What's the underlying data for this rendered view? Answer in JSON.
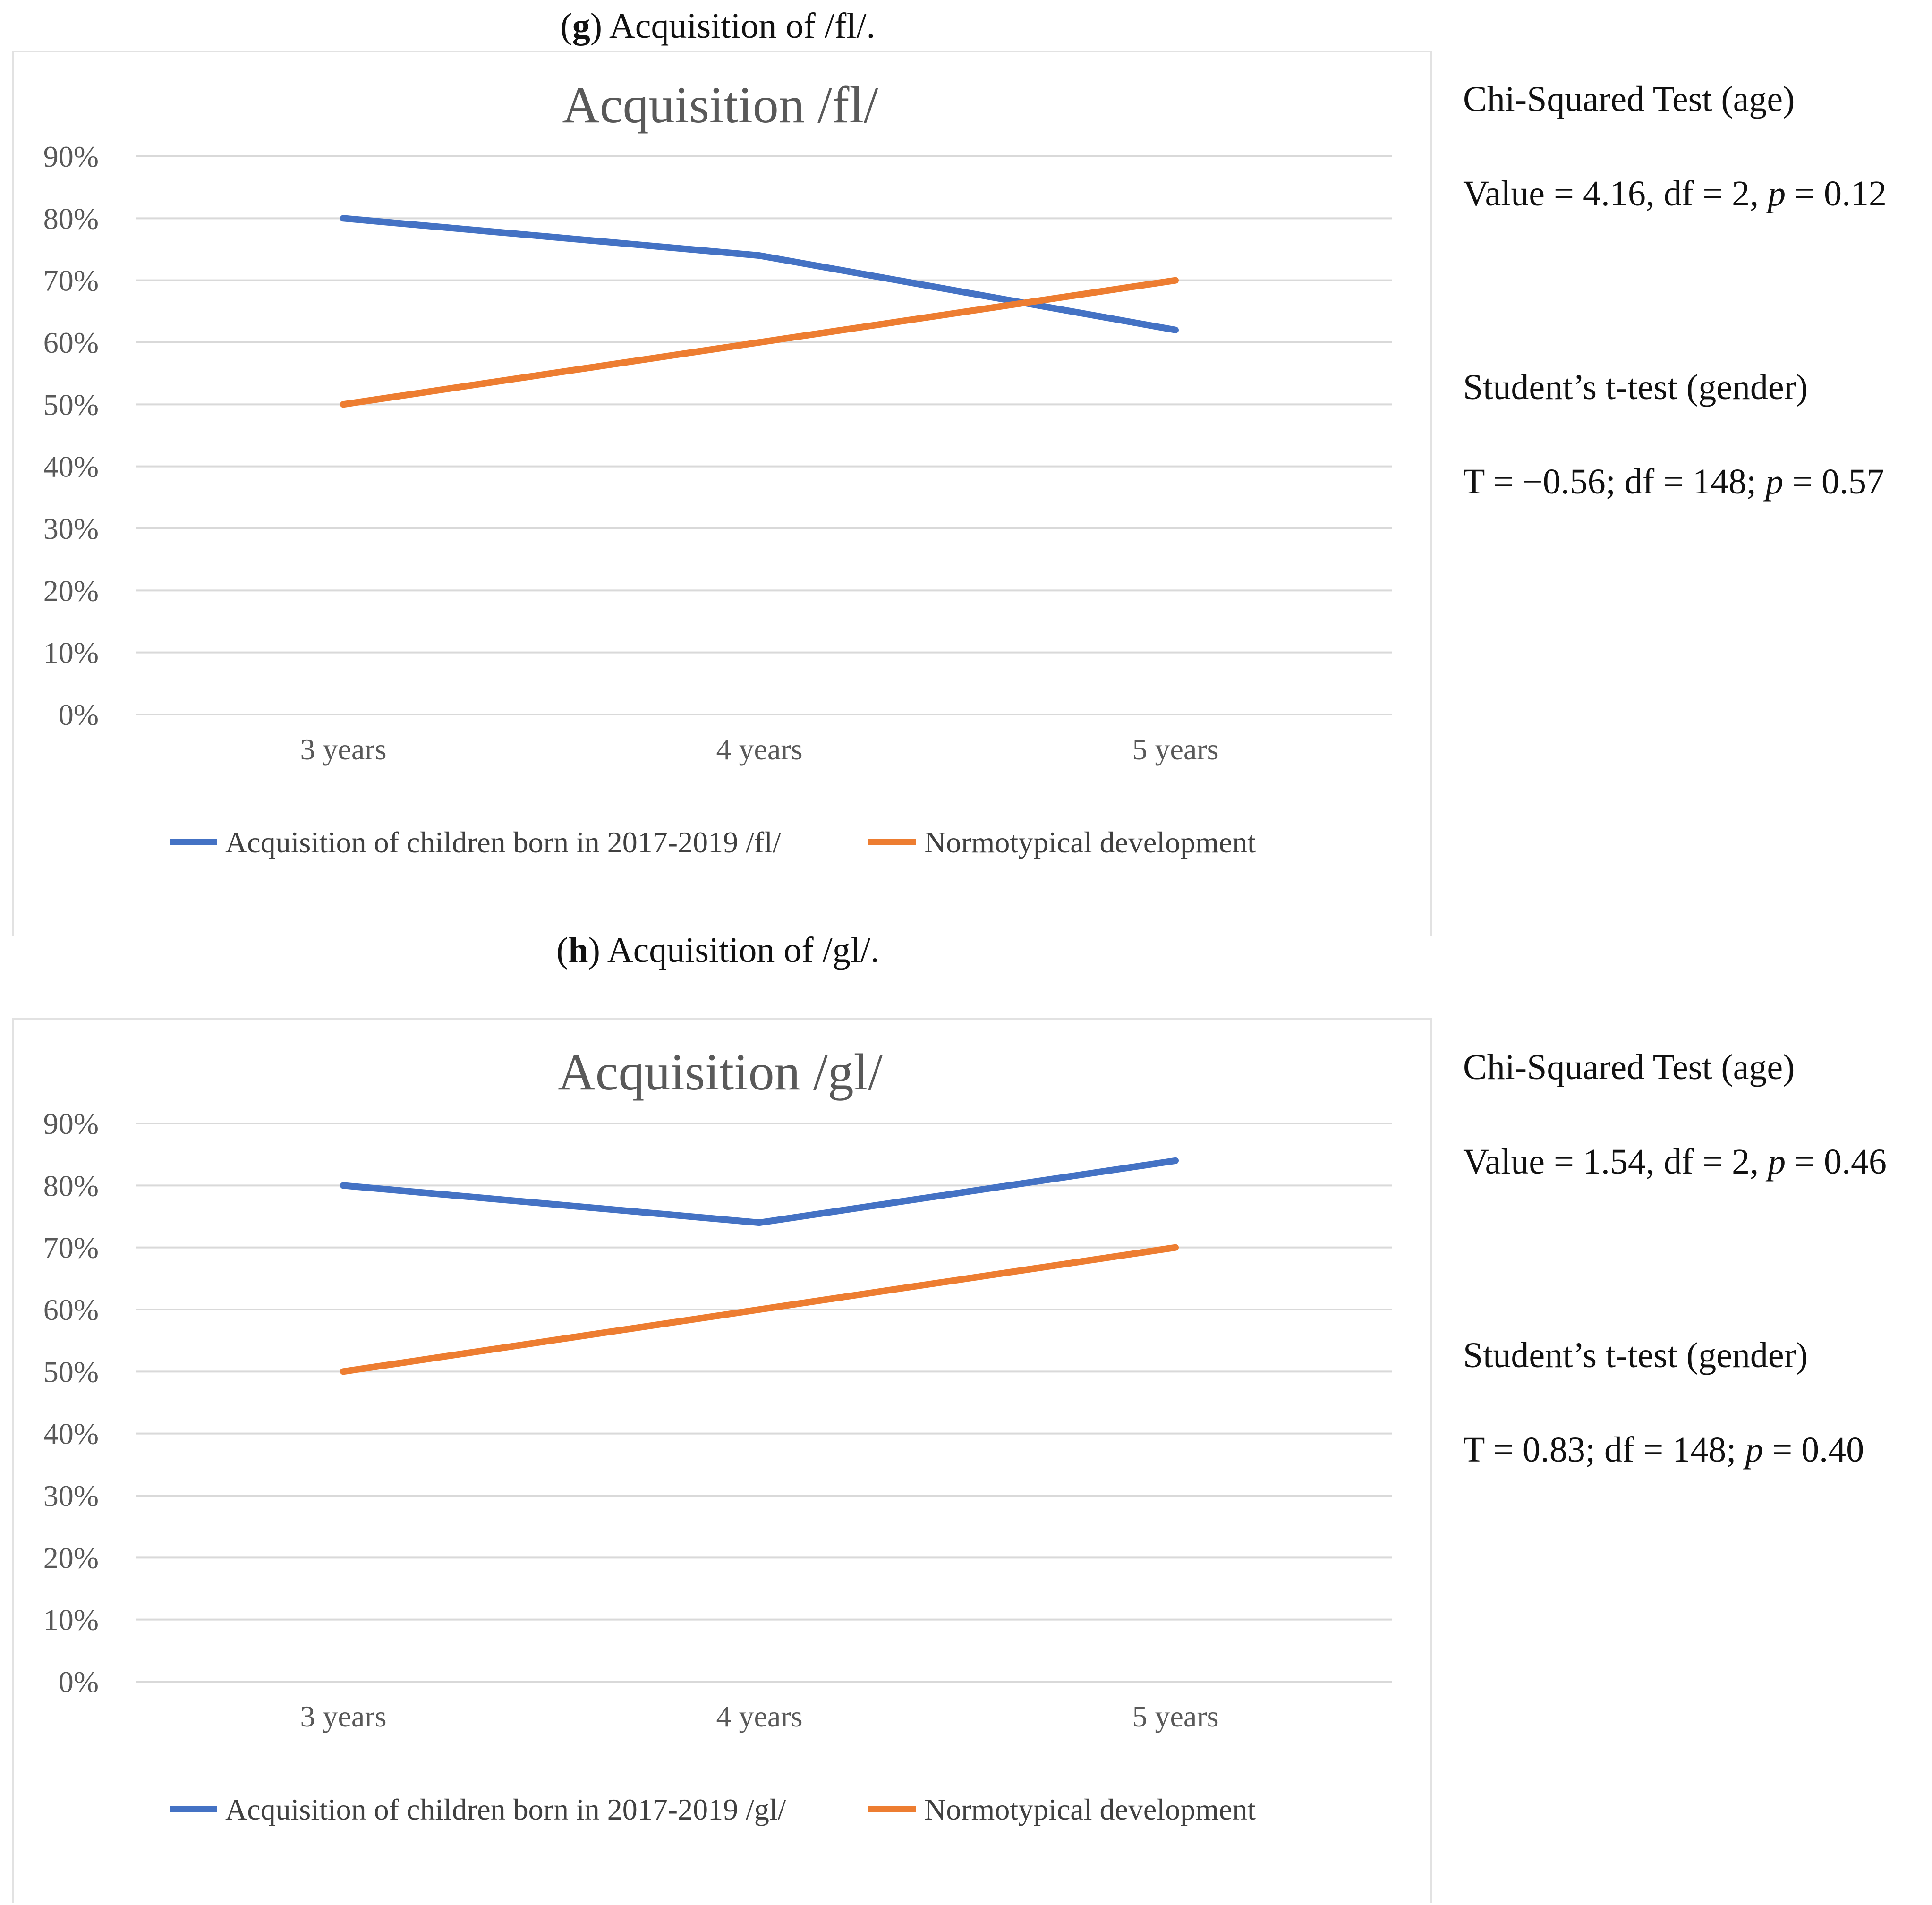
{
  "figures": [
    {
      "caption_letter": "g",
      "caption_text": ") Acquisition of /fl/.",
      "stats": {
        "chi_title": "Chi-Squared Test (age)",
        "chi_value_prefix": "Value = 4.16, df = 2, ",
        "chi_p_symbol": "p",
        "chi_p_value": " = 0.12",
        "t_title": "Student’s t-test (gender)",
        "t_value_prefix": "T = −0.56; df = 148; ",
        "t_p_symbol": "p",
        "t_p_value": " = 0.57"
      }
    },
    {
      "caption_letter": "h",
      "caption_text": ") Acquisition of /gl/.",
      "stats": {
        "chi_title": "Chi-Squared Test (age)",
        "chi_value_prefix": "Value = 1.54, df = 2, ",
        "chi_p_symbol": "p",
        "chi_p_value": " = 0.46",
        "t_title": "Student’s t-test (gender)",
        "t_value_prefix": "T = 0.83; df = 148; ",
        "t_p_symbol": "p",
        "t_p_value": " = 0.40"
      }
    }
  ],
  "chart_data": [
    {
      "type": "line",
      "title": "Acquisition /fl/",
      "categories": [
        "3 years",
        "4 years",
        "5 years"
      ],
      "y_ticks": [
        "0%",
        "10%",
        "20%",
        "30%",
        "40%",
        "50%",
        "60%",
        "70%",
        "80%",
        "90%"
      ],
      "ylim": [
        0,
        90
      ],
      "grid": true,
      "legend_position": "bottom",
      "series": [
        {
          "name": "Acquisition of children born in 2017-2019 /fl/",
          "color": "#4472c4",
          "values": [
            80,
            74,
            62
          ]
        },
        {
          "name": "Normotypical development",
          "color": "#ed7d31",
          "values": [
            50,
            60,
            70
          ]
        }
      ]
    },
    {
      "type": "line",
      "title": "Acquisition /gl/",
      "categories": [
        "3 years",
        "4 years",
        "5 years"
      ],
      "y_ticks": [
        "0%",
        "10%",
        "20%",
        "30%",
        "40%",
        "50%",
        "60%",
        "70%",
        "80%",
        "90%"
      ],
      "ylim": [
        0,
        90
      ],
      "grid": true,
      "legend_position": "bottom",
      "series": [
        {
          "name": "Acquisition of children born in 2017-2019 /gl/",
          "color": "#4472c4",
          "values": [
            80,
            74,
            84
          ]
        },
        {
          "name": "Normotypical development",
          "color": "#ed7d31",
          "values": [
            50,
            60,
            70
          ]
        }
      ]
    }
  ]
}
